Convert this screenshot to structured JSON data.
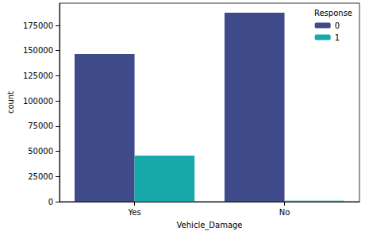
{
  "chart_data": {
    "type": "bar",
    "x_label": "Vehicle_Damage",
    "y_label": "count",
    "categories": [
      "Yes",
      "No"
    ],
    "series": [
      {
        "name": "0",
        "color": "#3e4a89",
        "values": [
          146685,
          187714
        ]
      },
      {
        "name": "1",
        "color": "#17a9a9",
        "values": [
          45728,
          982
        ]
      }
    ],
    "legend_title": "Response",
    "legend": "upper right",
    "ylim": [
      0,
      197100
    ],
    "yticks": [
      0,
      25000,
      50000,
      75000,
      100000,
      125000,
      150000,
      175000
    ],
    "grid": false
  }
}
